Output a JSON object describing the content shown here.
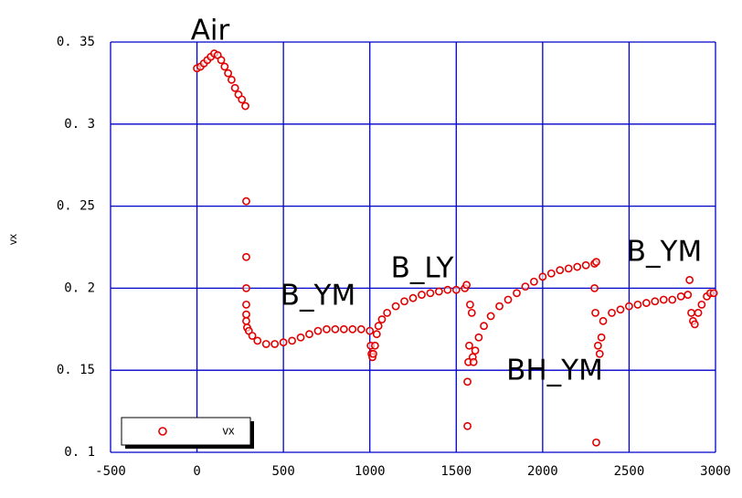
{
  "chart_data": {
    "type": "scatter",
    "y_label": "vx",
    "annotations": [
      "Air",
      "B_YM",
      "B_LY",
      "BH_YM",
      "B_YM"
    ],
    "xlim": [
      -500,
      3000
    ],
    "xticks": [
      -500,
      0,
      500,
      1000,
      1500,
      2000,
      2500,
      3000
    ],
    "ylim": [
      0.1,
      0.35
    ],
    "yticks": [
      {
        "value": 0.1,
        "label": "0. 1"
      },
      {
        "value": 0.15,
        "label": "0. 15"
      },
      {
        "value": 0.2,
        "label": "0. 2"
      },
      {
        "value": 0.25,
        "label": "0. 25"
      },
      {
        "value": 0.3,
        "label": "0. 3"
      },
      {
        "value": 0.35,
        "label": "0. 35"
      }
    ],
    "grid": true,
    "grid_color": "#0000cc",
    "legend": "lower left",
    "x": [
      0,
      20,
      40,
      60,
      80,
      100,
      120,
      140,
      160,
      180,
      200,
      220,
      240,
      260,
      280,
      285,
      285,
      285,
      285,
      285,
      285,
      290,
      300,
      320,
      350,
      400,
      450,
      500,
      550,
      600,
      650,
      700,
      750,
      800,
      850,
      900,
      950,
      1000,
      1005,
      1010,
      1015,
      1020,
      1030,
      1040,
      1050,
      1070,
      1100,
      1150,
      1200,
      1250,
      1300,
      1350,
      1400,
      1450,
      1500,
      1550,
      1560,
      1565,
      1565,
      1570,
      1575,
      1580,
      1590,
      1595,
      1600,
      1610,
      1630,
      1660,
      1700,
      1750,
      1800,
      1850,
      1900,
      1950,
      2000,
      2050,
      2100,
      2150,
      2200,
      2250,
      2300,
      2310,
      2300,
      2305,
      2310,
      2320,
      2330,
      2340,
      2350,
      2400,
      2450,
      2500,
      2550,
      2600,
      2650,
      2700,
      2750,
      2800,
      2840,
      2850,
      2860,
      2870,
      2880,
      2900,
      2920,
      2950,
      2970,
      2990
    ],
    "series": [
      {
        "name": "vx",
        "color": "#e00000",
        "values": [
          0.334,
          0.335,
          0.337,
          0.339,
          0.341,
          0.343,
          0.342,
          0.339,
          0.335,
          0.331,
          0.327,
          0.322,
          0.318,
          0.315,
          0.311,
          0.253,
          0.219,
          0.2,
          0.19,
          0.184,
          0.18,
          0.176,
          0.174,
          0.171,
          0.168,
          0.166,
          0.166,
          0.167,
          0.168,
          0.17,
          0.172,
          0.174,
          0.175,
          0.175,
          0.175,
          0.175,
          0.175,
          0.174,
          0.165,
          0.16,
          0.158,
          0.16,
          0.165,
          0.172,
          0.177,
          0.181,
          0.185,
          0.189,
          0.192,
          0.194,
          0.196,
          0.197,
          0.198,
          0.199,
          0.199,
          0.2,
          0.202,
          0.143,
          0.116,
          0.155,
          0.165,
          0.19,
          0.185,
          0.158,
          0.155,
          0.162,
          0.17,
          0.177,
          0.183,
          0.189,
          0.193,
          0.197,
          0.201,
          0.204,
          0.207,
          0.209,
          0.211,
          0.212,
          0.213,
          0.214,
          0.215,
          0.216,
          0.2,
          0.185,
          0.106,
          0.165,
          0.16,
          0.17,
          0.18,
          0.185,
          0.187,
          0.189,
          0.19,
          0.191,
          0.192,
          0.193,
          0.193,
          0.195,
          0.196,
          0.205,
          0.185,
          0.18,
          0.178,
          0.185,
          0.19,
          0.195,
          0.197,
          0.197
        ]
      }
    ]
  }
}
